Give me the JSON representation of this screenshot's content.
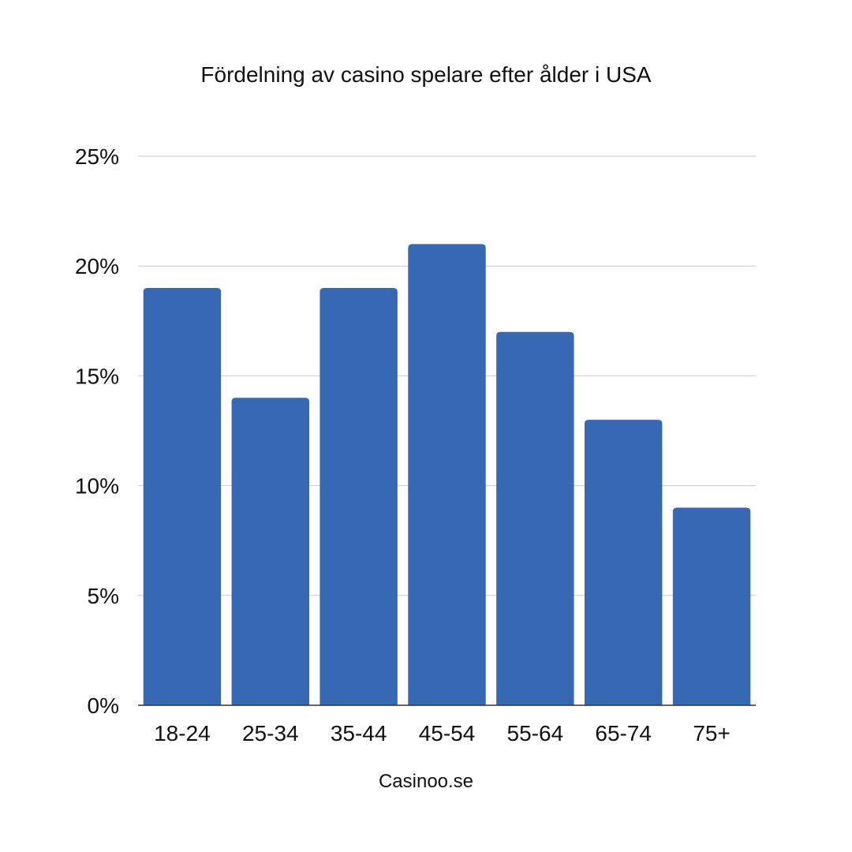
{
  "chart_data": {
    "type": "bar",
    "title": "Fördelning av casino spelare efter ålder i USA",
    "xlabel": "Casinoo.se",
    "ylabel": "",
    "categories": [
      "18-24",
      "25-34",
      "35-44",
      "45-54",
      "55-64",
      "65-74",
      "75+"
    ],
    "values": [
      19,
      14,
      19,
      21,
      17,
      13,
      9
    ],
    "ylim": [
      0,
      25
    ],
    "yticks": [
      0,
      5,
      10,
      15,
      20,
      25
    ],
    "ytick_labels": [
      "0%",
      "5%",
      "10%",
      "15%",
      "20%",
      "25%"
    ],
    "bar_color": "#3668b4",
    "grid": true
  }
}
